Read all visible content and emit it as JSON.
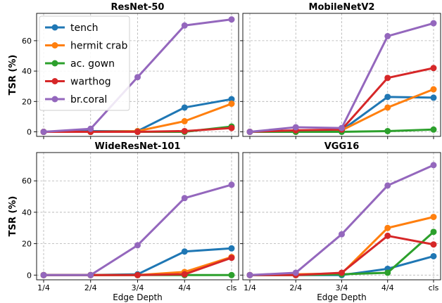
{
  "figure": {
    "ylabel": "TSR (%)",
    "xlabel": "Edge Depth"
  },
  "legend": {
    "entries": [
      "tench",
      "hermit crab",
      "ac. gown",
      "warthog",
      "br.coral"
    ]
  },
  "colors": {
    "tench": "#1f77b4",
    "hermit crab": "#ff7f0e",
    "ac. gown": "#2ca02c",
    "warthog": "#d62728",
    "br.coral": "#9467bd"
  },
  "chart_data": [
    {
      "type": "line",
      "title": "ResNet-50",
      "categories": [
        "1/4",
        "2/4",
        "3/4",
        "4/4",
        "cls"
      ],
      "ylim": [
        -3,
        78
      ],
      "yticks": [
        0,
        20,
        40,
        60
      ],
      "grid": true,
      "legend_position": "upper-left",
      "series": [
        {
          "name": "tench",
          "values": [
            0,
            0.5,
            0.5,
            16,
            21.5
          ]
        },
        {
          "name": "hermit crab",
          "values": [
            0,
            0,
            0.5,
            7,
            18.5
          ]
        },
        {
          "name": "ac. gown",
          "values": [
            0,
            0,
            0,
            0,
            3.5
          ]
        },
        {
          "name": "warthog",
          "values": [
            0,
            0,
            0,
            0.5,
            2.5
          ]
        },
        {
          "name": "br.coral",
          "values": [
            0,
            2,
            36,
            70,
            74
          ]
        }
      ]
    },
    {
      "type": "line",
      "title": "MobileNetV2",
      "categories": [
        "1/4",
        "2/4",
        "3/4",
        "4/4",
        "cls"
      ],
      "ylim": [
        -3,
        78
      ],
      "yticks": [
        0,
        20,
        40,
        60
      ],
      "grid": true,
      "series": [
        {
          "name": "tench",
          "values": [
            0,
            0.5,
            1,
            23,
            22.5
          ]
        },
        {
          "name": "hermit crab",
          "values": [
            0,
            0,
            1,
            16,
            28
          ]
        },
        {
          "name": "ac. gown",
          "values": [
            0,
            0,
            0,
            0.5,
            1.5
          ]
        },
        {
          "name": "warthog",
          "values": [
            0,
            1,
            1.5,
            35.5,
            42
          ]
        },
        {
          "name": "br.coral",
          "values": [
            0,
            3,
            2.5,
            63,
            71.5
          ]
        }
      ]
    },
    {
      "type": "line",
      "title": "WideResNet-101",
      "categories": [
        "1/4",
        "2/4",
        "3/4",
        "4/4",
        "cls"
      ],
      "ylim": [
        -3,
        78
      ],
      "yticks": [
        0,
        20,
        40,
        60
      ],
      "grid": true,
      "series": [
        {
          "name": "tench",
          "values": [
            0,
            0,
            0.5,
            15,
            17
          ]
        },
        {
          "name": "hermit crab",
          "values": [
            0,
            0,
            0,
            2,
            11.5
          ]
        },
        {
          "name": "ac. gown",
          "values": [
            0,
            0,
            0,
            0,
            0
          ]
        },
        {
          "name": "warthog",
          "values": [
            0,
            0,
            0,
            0.5,
            11
          ]
        },
        {
          "name": "br.coral",
          "values": [
            0,
            0,
            19,
            49,
            57.5
          ]
        }
      ]
    },
    {
      "type": "line",
      "title": "VGG16",
      "categories": [
        "1/4",
        "2/4",
        "3/4",
        "4/4",
        "cls"
      ],
      "ylim": [
        -3,
        78
      ],
      "yticks": [
        0,
        20,
        40,
        60
      ],
      "grid": true,
      "series": [
        {
          "name": "tench",
          "values": [
            0,
            0,
            0,
            4,
            12
          ]
        },
        {
          "name": "hermit crab",
          "values": [
            0,
            0.5,
            1,
            30,
            37
          ]
        },
        {
          "name": "ac. gown",
          "values": [
            0,
            0,
            0.5,
            1.5,
            27.5
          ]
        },
        {
          "name": "warthog",
          "values": [
            0,
            0,
            1.5,
            25,
            19.5
          ]
        },
        {
          "name": "br.coral",
          "values": [
            0,
            1.5,
            26,
            57,
            70
          ]
        }
      ]
    }
  ]
}
